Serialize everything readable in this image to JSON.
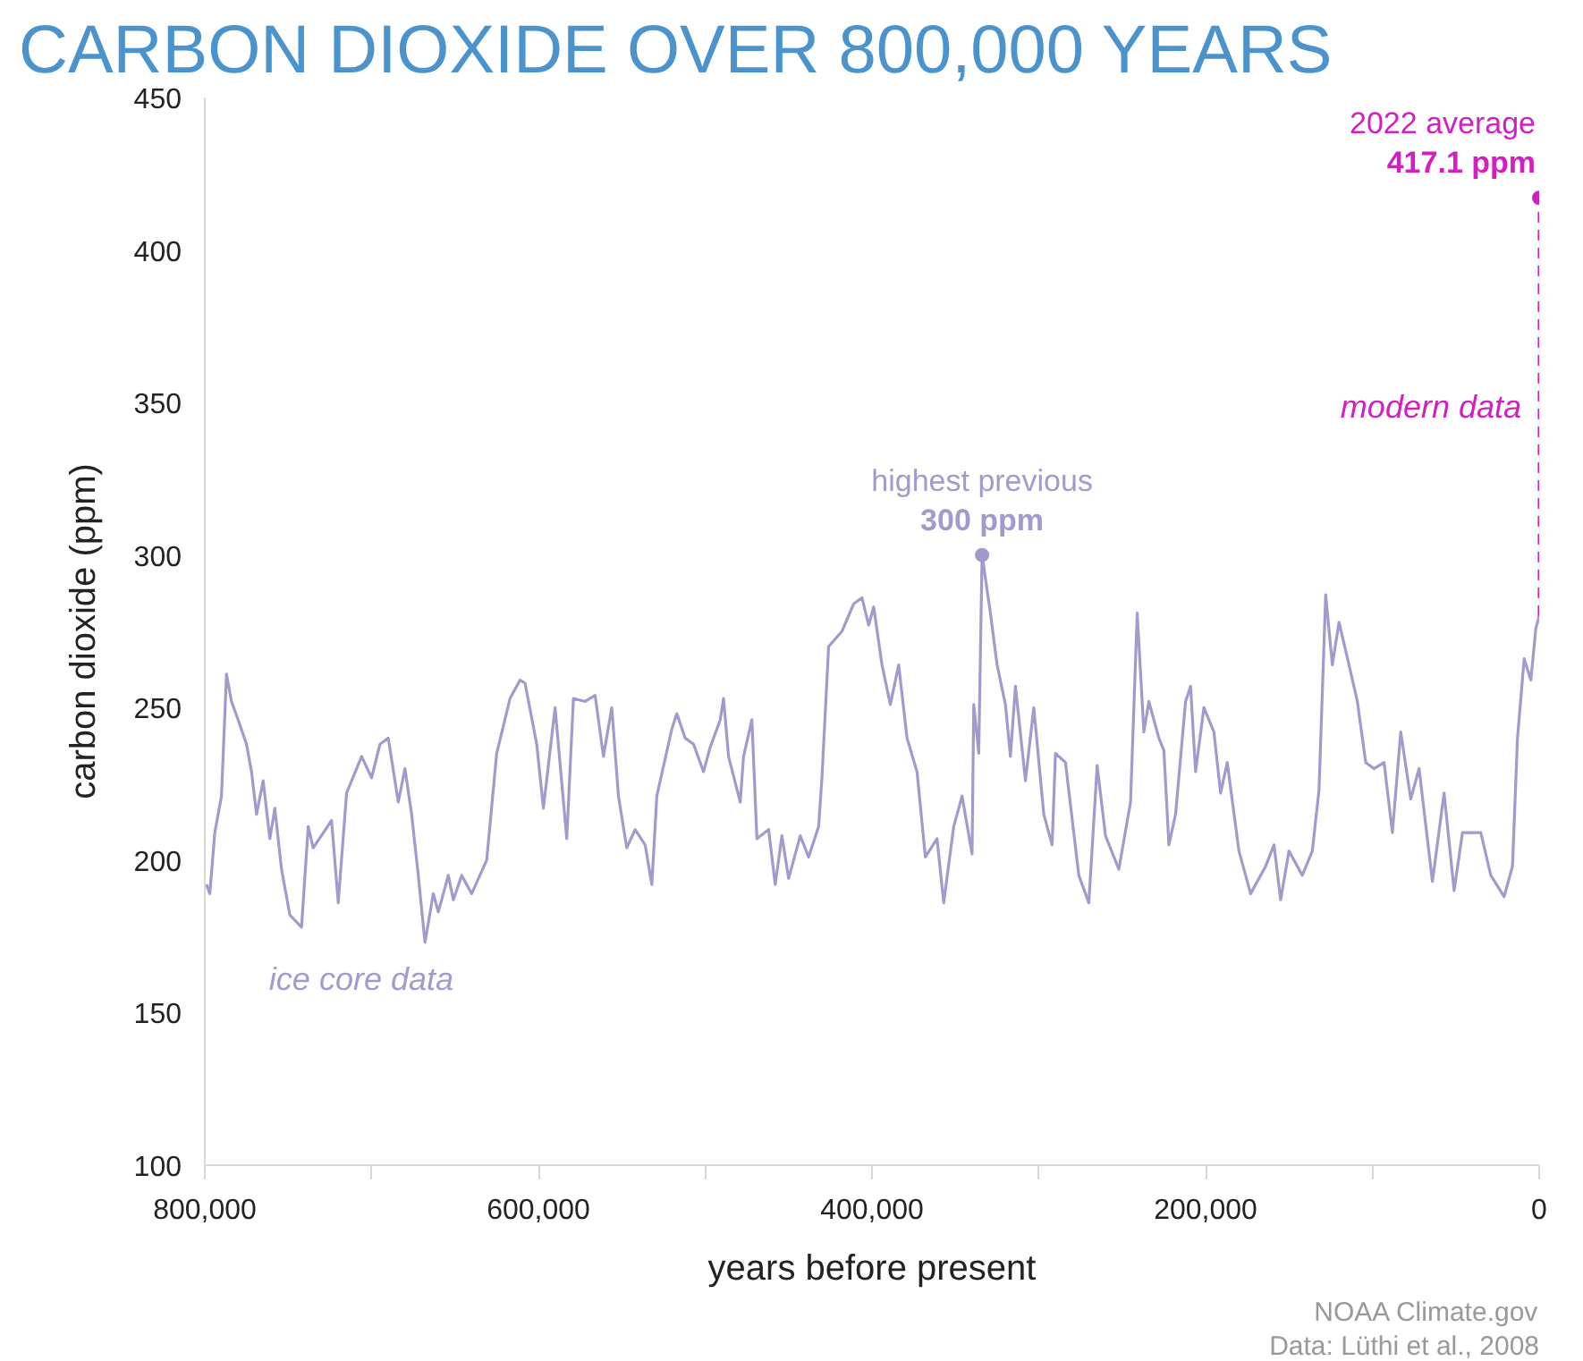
{
  "chart_data": {
    "type": "line",
    "title": "CARBON DIOXIDE OVER 800,000 YEARS",
    "xlabel": "years before present",
    "ylabel": "carbon dioxide (ppm)",
    "xlim": [
      800000,
      0
    ],
    "ylim": [
      100,
      450
    ],
    "xticks": [
      {
        "value": 800000,
        "label": "800,000"
      },
      {
        "value": 700000,
        "label": null
      },
      {
        "value": 600000,
        "label": "600,000"
      },
      {
        "value": 500000,
        "label": null
      },
      {
        "value": 400000,
        "label": "400,000"
      },
      {
        "value": 300000,
        "label": null
      },
      {
        "value": 200000,
        "label": "200,000"
      },
      {
        "value": 100000,
        "label": null
      },
      0
    ],
    "yticks": [
      100,
      150,
      200,
      250,
      300,
      350,
      400,
      450
    ],
    "grid": false,
    "series": [
      {
        "name": "ice core data",
        "color": "#a09bcc",
        "line_style": "solid",
        "x": [
          799000,
          797000,
          794000,
          790000,
          787000,
          784000,
          780000,
          775000,
          772000,
          769000,
          765000,
          761000,
          758000,
          754000,
          749000,
          742000,
          738000,
          735000,
          724000,
          720000,
          715000,
          706000,
          700000,
          695000,
          690000,
          684000,
          680000,
          676000,
          672000,
          668000,
          663000,
          660000,
          654000,
          651000,
          646000,
          640000,
          631000,
          625000,
          617000,
          611000,
          608000,
          601000,
          597000,
          590000,
          583000,
          579000,
          572000,
          566000,
          561000,
          556000,
          552000,
          547000,
          542000,
          536000,
          532000,
          529000,
          520000,
          517000,
          512000,
          507000,
          501000,
          497000,
          491000,
          489000,
          486000,
          479000,
          477000,
          472000,
          469000,
          462000,
          458000,
          454000,
          450000,
          443000,
          438000,
          432000,
          430000,
          426000,
          418000,
          411000,
          406000,
          402000,
          399000,
          394000,
          389000,
          384000,
          379000,
          373000,
          368000,
          361000,
          357000,
          351000,
          346000,
          340000,
          339000,
          336000,
          334000,
          329000,
          325000,
          320000,
          317000,
          314000,
          308000,
          303000,
          297000,
          292000,
          290000,
          284000,
          276000,
          270000,
          265000,
          260000,
          252000,
          245000,
          241000,
          237000,
          234000,
          228000,
          225000,
          222000,
          218000,
          212000,
          209000,
          206000,
          201000,
          195000,
          191000,
          187000,
          180000,
          173000,
          164000,
          159000,
          155000,
          150000,
          142000,
          136000,
          132000,
          128000,
          124000,
          120000,
          114000,
          109000,
          104000,
          99000,
          93000,
          88000,
          83000,
          77000,
          72000,
          64000,
          57000,
          51000,
          46000,
          35000,
          29000,
          21000,
          16000,
          13000,
          9000,
          5000,
          2000,
          0
        ],
        "values": [
          192,
          189,
          209,
          221,
          261,
          252,
          246,
          238,
          229,
          215,
          226,
          207,
          217,
          197,
          182,
          178,
          211,
          204,
          213,
          186,
          222,
          234,
          227,
          238,
          240,
          219,
          230,
          215,
          195,
          173,
          189,
          183,
          195,
          187,
          195,
          189,
          200,
          235,
          253,
          259,
          258,
          238,
          217,
          250,
          207,
          253,
          252,
          254,
          234,
          250,
          221,
          204,
          210,
          205,
          192,
          221,
          243,
          248,
          240,
          238,
          229,
          237,
          246,
          253,
          234,
          219,
          234,
          246,
          207,
          210,
          192,
          208,
          194,
          208,
          201,
          211,
          227,
          270,
          275,
          284,
          286,
          277,
          283,
          264,
          251,
          264,
          240,
          229,
          201,
          207,
          186,
          211,
          221,
          202,
          251,
          235,
          300,
          281,
          264,
          251,
          234,
          257,
          226,
          250,
          215,
          205,
          235,
          232,
          195,
          186,
          231,
          208,
          197,
          219,
          281,
          242,
          252,
          240,
          236,
          205,
          215,
          252,
          257,
          229,
          250,
          242,
          222,
          232,
          203,
          189,
          198,
          205,
          187,
          203,
          195,
          203,
          223,
          287,
          264,
          278,
          264,
          252,
          232,
          230,
          232,
          209,
          242,
          220,
          230,
          193,
          222,
          190,
          209,
          209,
          195,
          188,
          198,
          240,
          266,
          259,
          276,
          280
        ]
      },
      {
        "name": "modern data",
        "color": "#d21fc0",
        "line_style": "dashed",
        "x": [
          0,
          0
        ],
        "values": [
          280,
          417.1
        ]
      }
    ],
    "annotations": [
      {
        "text": "highest previous\n300 ppm",
        "x": 334000,
        "y": 300
      },
      {
        "text": "2022 average\n417.1 ppm",
        "x": 0,
        "y": 417.1
      },
      "NOAA Climate.gov",
      "Data: Lüthi et al., 2008"
    ]
  }
}
